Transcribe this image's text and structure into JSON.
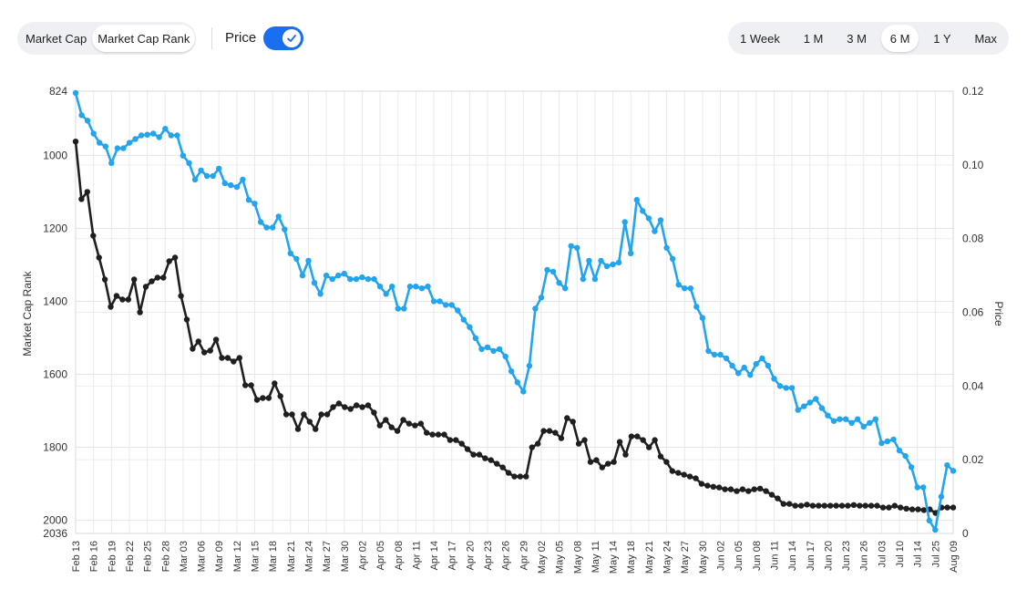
{
  "controls": {
    "metric_tabs": [
      {
        "label": "Market Cap",
        "active": false
      },
      {
        "label": "Market Cap Rank",
        "active": true
      }
    ],
    "price_toggle": {
      "label": "Price",
      "on": true
    },
    "range_tabs": [
      {
        "label": "1 Week",
        "active": false
      },
      {
        "label": "1 M",
        "active": false
      },
      {
        "label": "3 M",
        "active": false
      },
      {
        "label": "6 M",
        "active": true
      },
      {
        "label": "1 Y",
        "active": false
      },
      {
        "label": "Max",
        "active": false
      }
    ],
    "accent_color": "#1a6ff0"
  },
  "chart_data": {
    "type": "line",
    "title": "",
    "ylabel": "Market Cap Rank",
    "y2label": "Price",
    "y_inverted": true,
    "ylim": [
      824,
      2036
    ],
    "y_ticks": [
      824,
      1000,
      1200,
      1400,
      1600,
      1800,
      2000,
      2036
    ],
    "y2lim": [
      0,
      0.12
    ],
    "y2_ticks": [
      "0",
      "0.02",
      "0.04",
      "0.06",
      "0.08",
      "0.10",
      "0.12"
    ],
    "grid": true,
    "x_ticks": [
      "Feb 13",
      "Feb 16",
      "Feb 19",
      "Feb 22",
      "Feb 25",
      "Feb 28",
      "Mar 03",
      "Mar 06",
      "Mar 09",
      "Mar 12",
      "Mar 15",
      "Mar 18",
      "Mar 21",
      "Mar 24",
      "Mar 27",
      "Mar 30",
      "Apr 02",
      "Apr 05",
      "Apr 08",
      "Apr 11",
      "Apr 14",
      "Apr 17",
      "Apr 20",
      "Apr 23",
      "Apr 26",
      "Apr 29",
      "May 02",
      "May 05",
      "May 08",
      "May 11",
      "May 14",
      "May 18",
      "May 21",
      "May 24",
      "May 27",
      "May 30",
      "Jun 02",
      "Jun 05",
      "Jun 08",
      "Jun 11",
      "Jun 14",
      "Jun 17",
      "Jun 20",
      "Jun 23",
      "Jun 26",
      "Jul 03",
      "Jul 10",
      "Jul 14",
      "Jul 25",
      "Aug 09"
    ],
    "series": [
      {
        "name": "",
        "axis": "left",
        "color": "#1f1f1f",
        "values": [
          962,
          1120,
          1100,
          1220,
          1280,
          1340,
          1415,
          1385,
          1395,
          1395,
          1340,
          1430,
          1360,
          1345,
          1335,
          1335,
          1290,
          1280,
          1385,
          1450,
          1530,
          1510,
          1540,
          1535,
          1505,
          1555,
          1555,
          1565,
          1555,
          1630,
          1630,
          1670,
          1665,
          1665,
          1625,
          1660,
          1710,
          1710,
          1750,
          1710,
          1730,
          1750,
          1710,
          1710,
          1690,
          1680,
          1690,
          1695,
          1685,
          1690,
          1685,
          1705,
          1740,
          1725,
          1745,
          1755,
          1725,
          1735,
          1740,
          1735,
          1760,
          1765,
          1765,
          1765,
          1780,
          1780,
          1790,
          1805,
          1820,
          1820,
          1830,
          1835,
          1845,
          1855,
          1870,
          1880,
          1880,
          1880,
          1800,
          1790,
          1755,
          1755,
          1760,
          1775,
          1720,
          1730,
          1790,
          1780,
          1840,
          1835,
          1855,
          1845,
          1840,
          1785,
          1820,
          1770,
          1770,
          1780,
          1800,
          1780,
          1825,
          1840,
          1865,
          1870,
          1875,
          1880,
          1885,
          1900,
          1905,
          1908,
          1910,
          1915,
          1915,
          1920,
          1915,
          1920,
          1915,
          1913,
          1920,
          1930,
          1940,
          1955,
          1955,
          1960,
          1960,
          1957,
          1960,
          1960,
          1960,
          1960,
          1960,
          1960,
          1960,
          1958,
          1960,
          1960,
          1960,
          1960,
          1965,
          1965,
          1960,
          1965,
          1968,
          1970,
          1970,
          1972,
          1970,
          1980,
          1965,
          1965,
          1965
        ],
        "unit_note": "rank"
      },
      {
        "name": "",
        "axis": "right",
        "color": "#22a4ee",
        "values": [
          0.1195,
          0.1135,
          0.112,
          0.1085,
          0.106,
          0.105,
          0.1005,
          0.1045,
          0.1045,
          0.106,
          0.107,
          0.108,
          0.1082,
          0.1085,
          0.1075,
          0.1098,
          0.108,
          0.108,
          0.1025,
          0.1005,
          0.096,
          0.0985,
          0.097,
          0.097,
          0.099,
          0.095,
          0.0945,
          0.094,
          0.096,
          0.0905,
          0.0895,
          0.0845,
          0.083,
          0.083,
          0.086,
          0.0825,
          0.076,
          0.0745,
          0.07,
          0.074,
          0.068,
          0.065,
          0.07,
          0.069,
          0.07,
          0.0705,
          0.069,
          0.069,
          0.0695,
          0.069,
          0.069,
          0.067,
          0.065,
          0.067,
          0.061,
          0.061,
          0.067,
          0.067,
          0.0665,
          0.067,
          0.063,
          0.063,
          0.062,
          0.062,
          0.0605,
          0.058,
          0.056,
          0.053,
          0.05,
          0.0505,
          0.0495,
          0.05,
          0.048,
          0.044,
          0.041,
          0.0385,
          0.0455,
          0.061,
          0.064,
          0.0715,
          0.071,
          0.068,
          0.0665,
          0.078,
          0.0775,
          0.069,
          0.074,
          0.069,
          0.074,
          0.0725,
          0.073,
          0.0735,
          0.0845,
          0.076,
          0.0905,
          0.0875,
          0.0855,
          0.082,
          0.085,
          0.0775,
          0.0745,
          0.0675,
          0.0665,
          0.0665,
          0.0615,
          0.0585,
          0.0495,
          0.0485,
          0.0485,
          0.0475,
          0.0455,
          0.0435,
          0.045,
          0.043,
          0.046,
          0.0475,
          0.0455,
          0.042,
          0.04,
          0.0395,
          0.0395,
          0.0335,
          0.0345,
          0.0355,
          0.0365,
          0.034,
          0.032,
          0.0305,
          0.031,
          0.031,
          0.03,
          0.031,
          0.029,
          0.03,
          0.031,
          0.0245,
          0.025,
          0.0255,
          0.0225,
          0.021,
          0.018,
          0.0125,
          0.0125,
          0.0035,
          0.001,
          0.01,
          0.0185,
          0.017
        ]
      }
    ]
  }
}
